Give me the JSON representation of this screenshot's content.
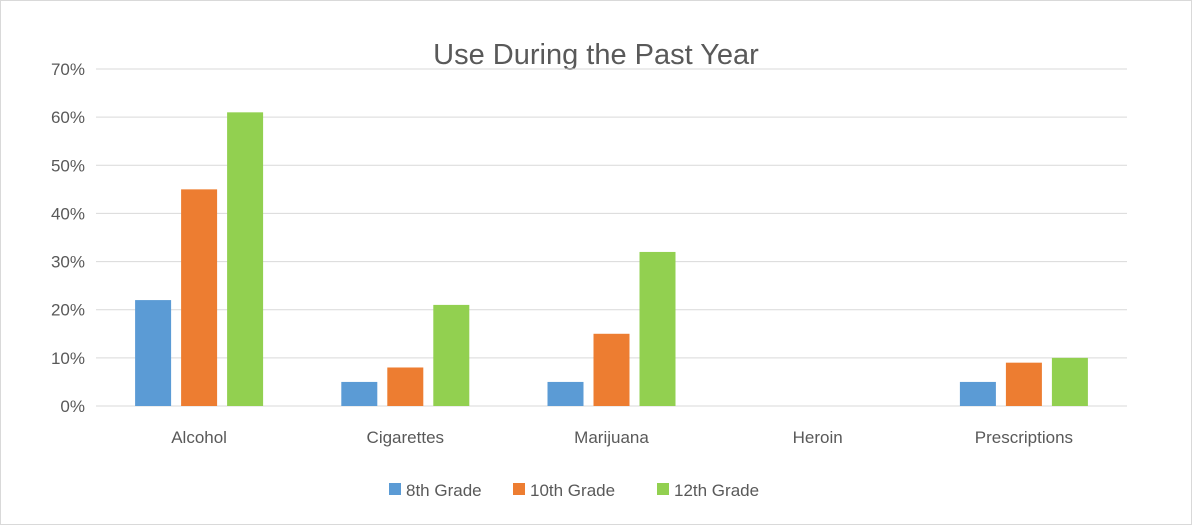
{
  "chart_data": {
    "type": "bar",
    "title": "Use During the Past Year",
    "xlabel": "",
    "ylabel": "",
    "categories": [
      "Alcohol",
      "Cigarettes",
      "Marijuana",
      "Heroin",
      "Prescriptions"
    ],
    "series": [
      {
        "name": "8th Grade",
        "color": "#5b9bd5",
        "values": [
          22,
          5,
          5,
          0,
          5
        ]
      },
      {
        "name": "10th Grade",
        "color": "#ed7d31",
        "values": [
          45,
          8,
          15,
          0,
          9
        ]
      },
      {
        "name": "12th Grade",
        "color": "#92d050",
        "values": [
          61,
          21,
          32,
          0,
          10
        ]
      }
    ],
    "ylim": [
      0,
      70
    ],
    "yticks": [
      0,
      10,
      20,
      30,
      40,
      50,
      60,
      70
    ],
    "ytick_labels": [
      "0%",
      "10%",
      "20%",
      "30%",
      "40%",
      "50%",
      "60%",
      "70%"
    ],
    "grid": true,
    "legend_position": "bottom",
    "gridline_color": "#d9d9d9",
    "text_color": "#595959"
  }
}
